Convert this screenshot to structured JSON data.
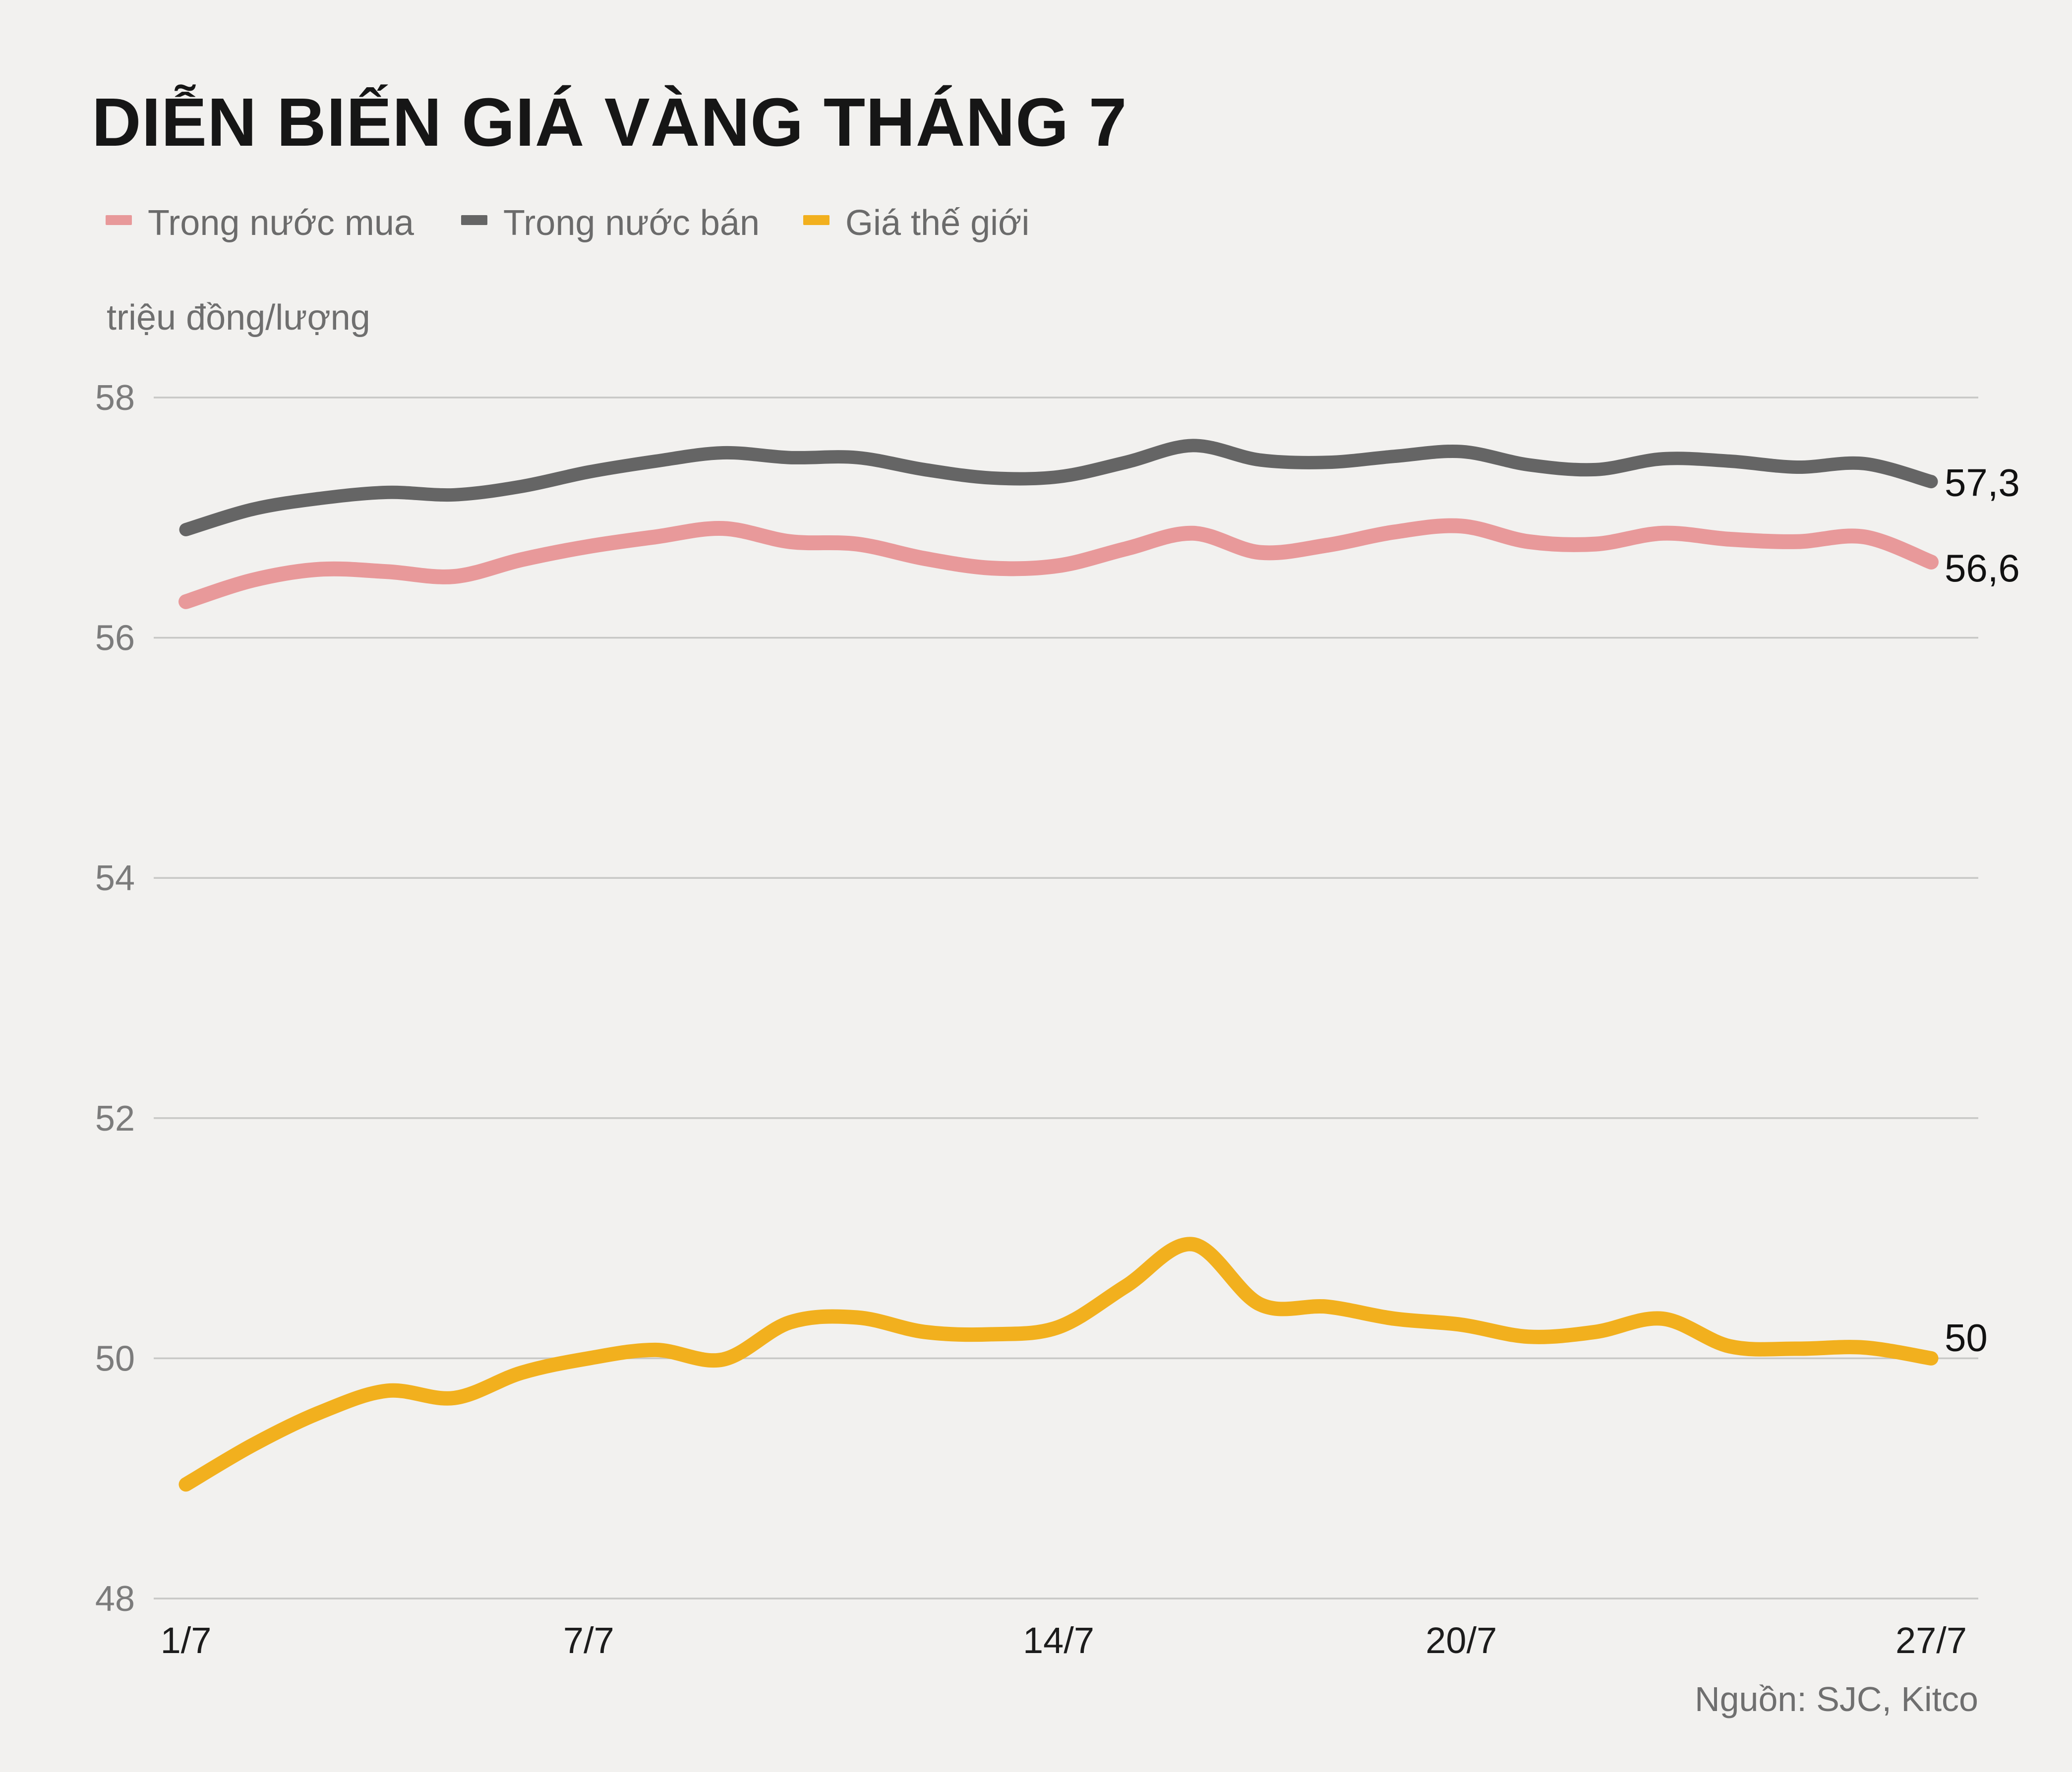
{
  "title": "DIỄN BIẾN GIÁ VÀNG THÁNG 7",
  "unit_label": "triệu đồng/lượng",
  "source": "Nguồn: SJC, Kitco",
  "colors": {
    "background": "#f2f1ef",
    "grid": "#c8c8c6",
    "buy": "#e8999a",
    "sell": "#656565",
    "world": "#f2b01e"
  },
  "legend": {
    "items": [
      {
        "label": "Trong nước mua",
        "color_key": "buy"
      },
      {
        "label": "Trong nước bán",
        "color_key": "sell"
      },
      {
        "label": "Giá thế giới",
        "color_key": "world"
      }
    ]
  },
  "chart_data": {
    "type": "line",
    "x_unit": "day of July",
    "x": [
      1,
      2,
      3,
      4,
      5,
      6,
      7,
      8,
      9,
      10,
      11,
      12,
      13,
      14,
      15,
      16,
      17,
      18,
      19,
      20,
      21,
      22,
      23,
      24,
      25,
      26,
      27
    ],
    "x_ticks": [
      {
        "day": 1,
        "label": "1/7"
      },
      {
        "day": 7,
        "label": "7/7"
      },
      {
        "day": 14,
        "label": "14/7"
      },
      {
        "day": 20,
        "label": "20/7"
      },
      {
        "day": 27,
        "label": "27/7"
      }
    ],
    "ylabel": "triệu đồng/lượng",
    "ylim": [
      48,
      58
    ],
    "y_ticks": [
      58,
      56,
      54,
      52,
      50,
      48
    ],
    "grid": "horizontal",
    "legend_position": "top-left",
    "series": [
      {
        "name": "Trong nước mua",
        "color_key": "buy",
        "end_label": "56,6",
        "values": [
          56.3,
          56.48,
          56.57,
          56.55,
          56.51,
          56.65,
          56.76,
          56.84,
          56.91,
          56.8,
          56.78,
          56.66,
          56.58,
          56.6,
          56.74,
          56.87,
          56.71,
          56.77,
          56.88,
          56.93,
          56.8,
          56.78,
          56.87,
          56.82,
          56.8,
          56.84,
          56.63
        ]
      },
      {
        "name": "Trong nước bán",
        "color_key": "sell",
        "end_label": "57,3",
        "values": [
          56.9,
          57.07,
          57.16,
          57.21,
          57.19,
          57.26,
          57.38,
          57.47,
          57.54,
          57.5,
          57.5,
          57.4,
          57.33,
          57.34,
          57.46,
          57.6,
          57.48,
          57.46,
          57.51,
          57.55,
          57.44,
          57.4,
          57.49,
          57.47,
          57.42,
          57.45,
          57.3
        ]
      },
      {
        "name": "Giá thế giới",
        "color_key": "world",
        "end_label": "50",
        "values": [
          48.95,
          49.28,
          49.55,
          49.73,
          49.67,
          49.88,
          50.0,
          50.07,
          49.99,
          50.3,
          50.34,
          50.22,
          50.2,
          50.26,
          50.6,
          50.95,
          50.45,
          50.43,
          50.33,
          50.28,
          50.18,
          50.22,
          50.33,
          50.1,
          50.08,
          50.09,
          50.0
        ]
      }
    ]
  }
}
